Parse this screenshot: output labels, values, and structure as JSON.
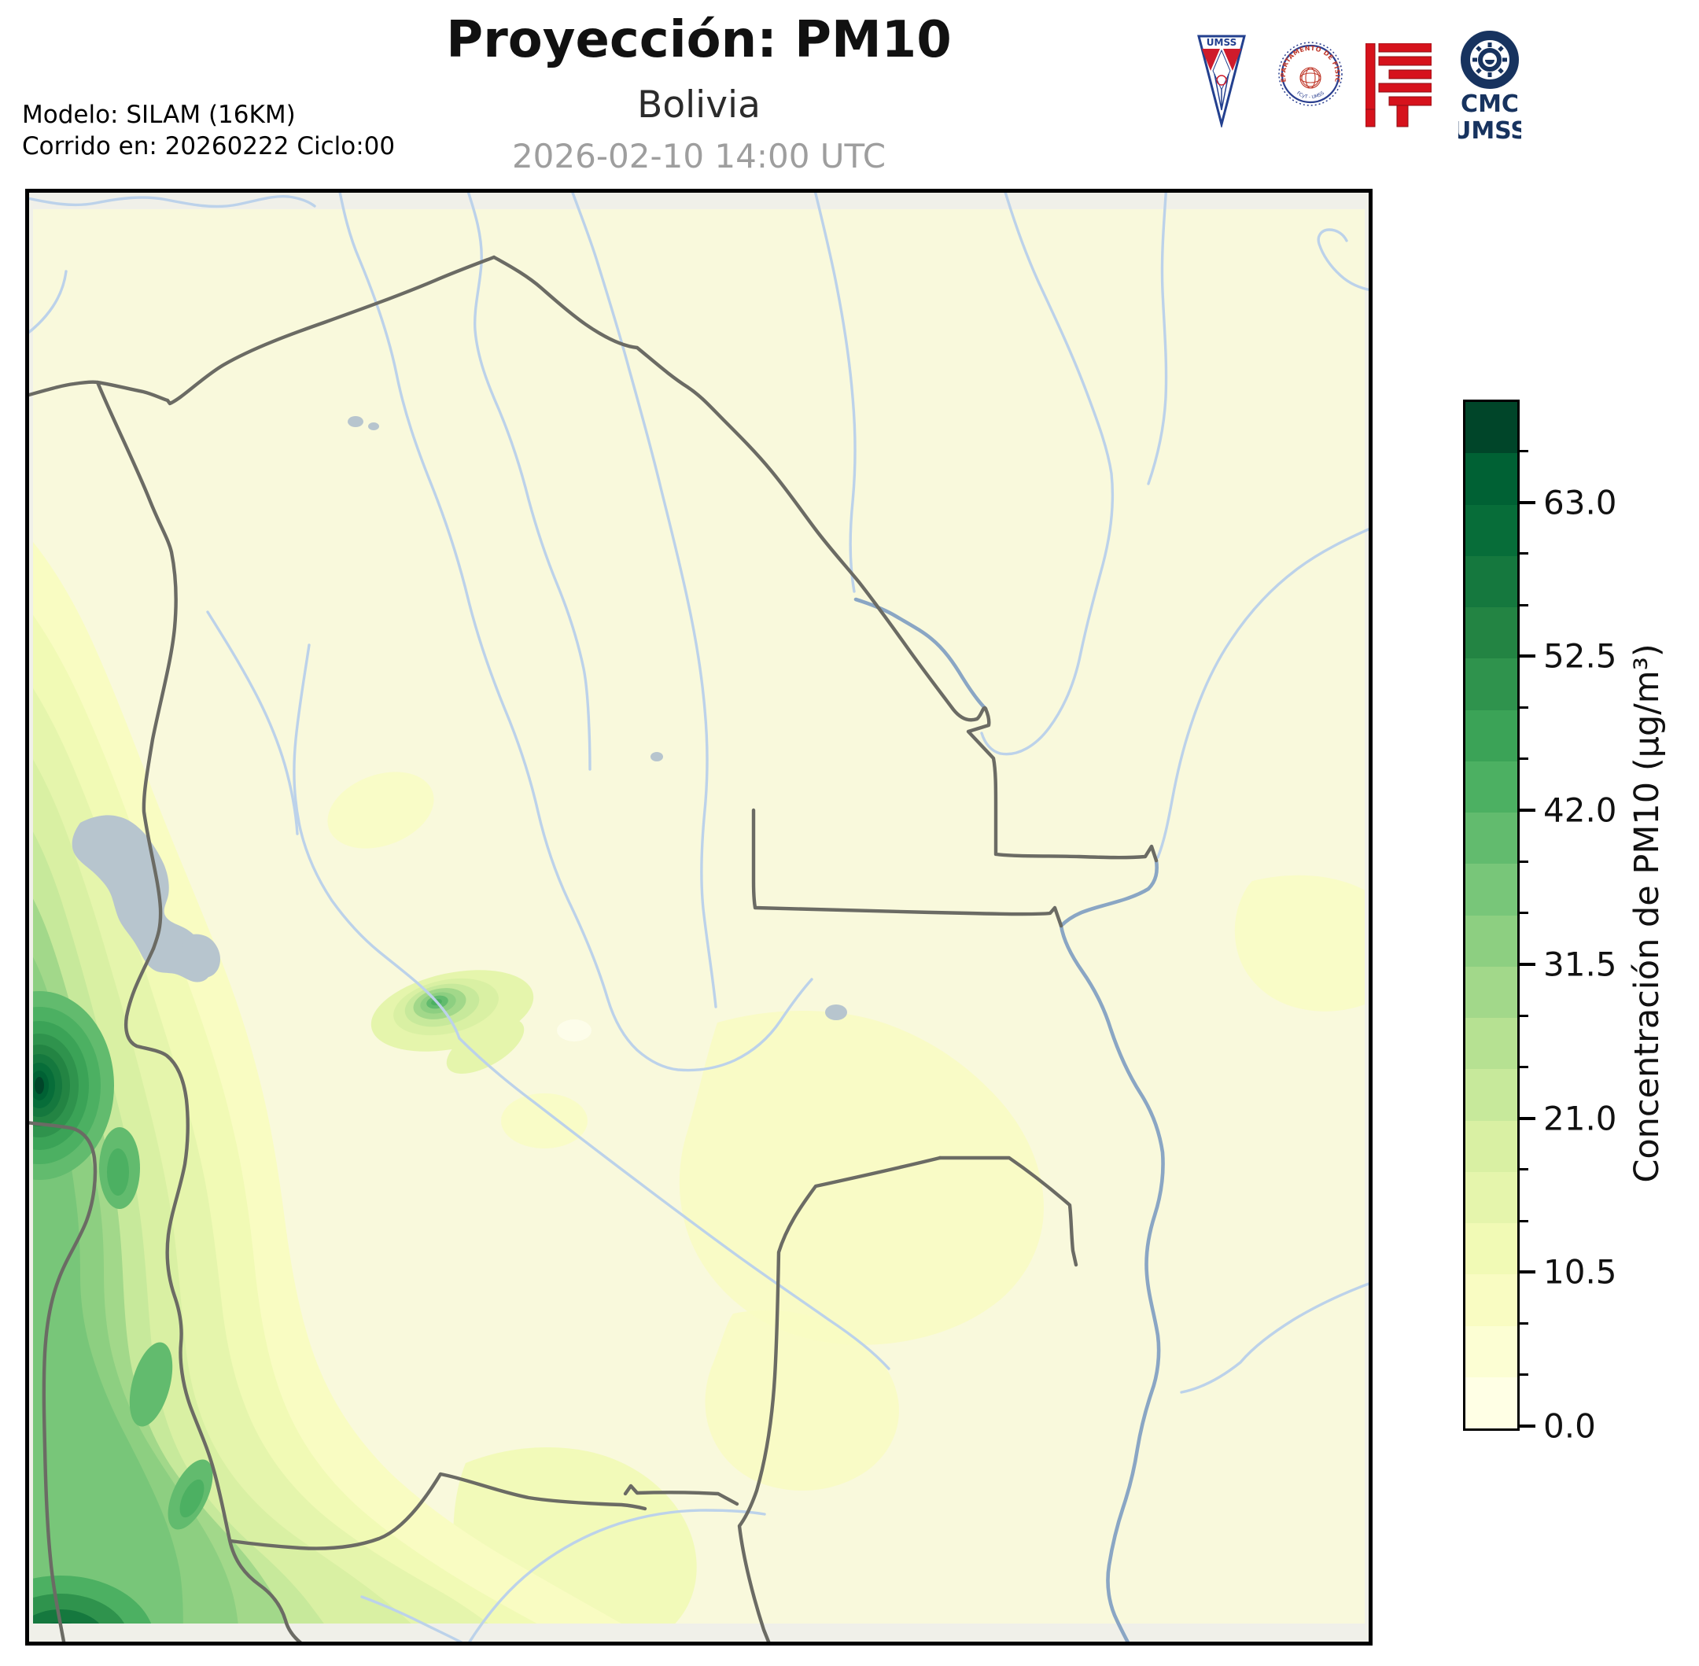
{
  "figure": {
    "title": "Proyección: PM10",
    "subtitle": "Bolivia",
    "timestamp": "2026-02-10 14:00 UTC",
    "model_line1": "Modelo: SILAM (16KM)",
    "model_line2": "Corrido en: 20260222 Ciclo:00"
  },
  "logos": {
    "pennant": {
      "label": "UMSS"
    },
    "seal": {
      "label": "DEPARTAMENTO DE FÍSICA",
      "sublabel": "FCyT - UMSS"
    },
    "cmc": {
      "line1": "CMC",
      "line2": "UMSS"
    }
  },
  "colorbar": {
    "label": "Concentración de PM10 (µg/m³)",
    "vmin": 0,
    "vmax": 70,
    "level_step": 3.5,
    "tick_values": [
      0,
      10.5,
      21,
      31.5,
      42,
      52.5,
      63
    ],
    "palette": [
      "#ffffe5",
      "#fcfed3",
      "#f9fcc2",
      "#f1fab5",
      "#e5f5ac",
      "#d9f0a3",
      "#c7e99b",
      "#b6e192",
      "#a2d88a",
      "#8dcf81",
      "#78c679",
      "#62bb6e",
      "#4cb062",
      "#3ba357",
      "#2f934d",
      "#238443",
      "#15783e",
      "#076d39",
      "#006134",
      "#004529"
    ]
  },
  "map": {
    "colors": {
      "background": "#f9f9dc",
      "outside_domain": "#f0f0e9",
      "river": "#bcd2ea",
      "major_river": "#8aa6c4",
      "border": "#6b6b64",
      "lake": "#b7c5ce",
      "frame": "#000000"
    }
  },
  "chart_data": {
    "type": "heatmap",
    "title": "Proyección: PM10",
    "subtitle": "Bolivia",
    "timestamp": "2026-02-10 14:00 UTC",
    "model": "SILAM (16KM), corrida 20260222 ciclo 00",
    "colorbar_label": "Concentración de PM10 (µg/m³)",
    "units": "µg/m³",
    "scale": {
      "vmin": 0,
      "vmax": 70,
      "level_step": 3.5,
      "tick_values": [
        0,
        10.5,
        21,
        31.5,
        42,
        52.5,
        63
      ],
      "palette_name": "YlGn, discrete (20 levels)"
    },
    "regions": [
      {
        "area": "Bolivian lowlands (north, center, east)",
        "approx_value": "0-3.5"
      },
      {
        "area": "Andean band along SW Bolivia / Chile border",
        "approx_value": "7-38"
      },
      {
        "area": "hotspot at western map edge (~18.5S, coastal Chile/Peru)",
        "approx_value": ">63"
      },
      {
        "area": "southwest map corner hotspot",
        "approx_value": "45-63"
      },
      {
        "area": "small plume near Cochabamba",
        "approx_value": "25-30"
      },
      {
        "area": "faint patches in SE lowlands and south-center",
        "approx_value": "3.5-7"
      }
    ],
    "legend_position": "right vertical colorbar",
    "grid": false
  }
}
